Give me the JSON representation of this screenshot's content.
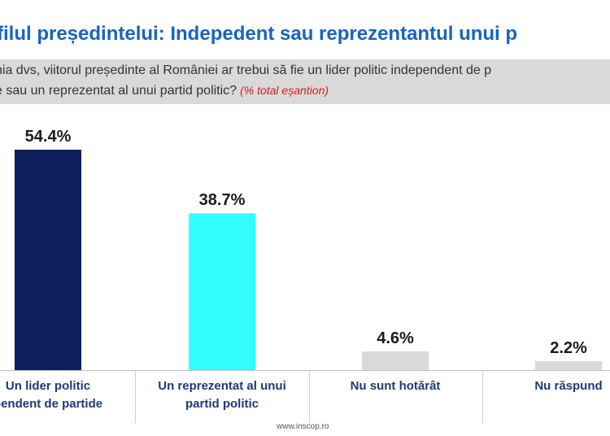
{
  "title": "filul președintelui: Indepedent sau reprezentantul unui p",
  "question": {
    "line1": "nia dvs, viitorul președinte al României ar trebui să fie un lider politic independent de p",
    "line2": "e sau un reprezentat al unui partid politic?",
    "note": "(% total eșantion)"
  },
  "footer": "www.inscop.ro",
  "chart_data": {
    "type": "bar",
    "categories": [
      [
        "Un lider politic",
        "pendent de partide"
      ],
      [
        "Un reprezentat al unui",
        "partid politic"
      ],
      [
        "Nu sunt hotărât"
      ],
      [
        "Nu răspund"
      ]
    ],
    "values": [
      54.4,
      38.7,
      4.6,
      2.2
    ],
    "value_labels": [
      "54.4%",
      "38.7%",
      "4.6%",
      "2.2%"
    ],
    "colors": [
      "#0d1f5c",
      "#33ffff",
      "#d9d9d9",
      "#d9d9d9"
    ],
    "grid": false
  }
}
